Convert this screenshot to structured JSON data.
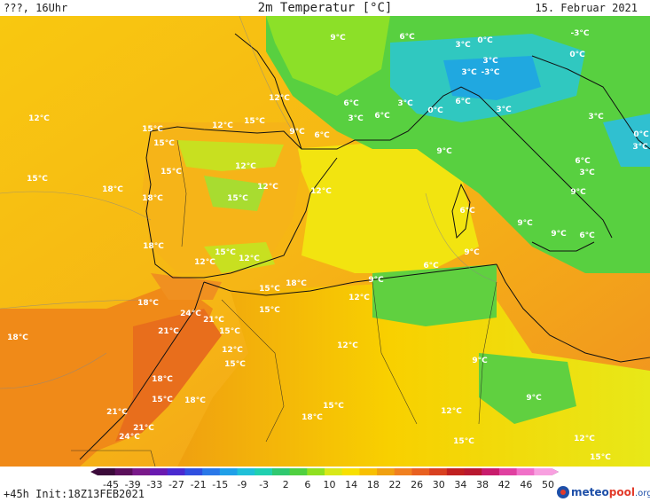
{
  "header": {
    "left": "???, 16Uhr",
    "title": "2m Temperatur [°C]",
    "date": "15. Februar 2021"
  },
  "footer": {
    "init": "+45h Init:18Z13FEB2021",
    "logo": {
      "part1": "meteo",
      "part2": "pool",
      "part3": ".org"
    }
  },
  "colorbar": {
    "labels": [
      "-45",
      "-39",
      "-33",
      "-27",
      "-21",
      "-15",
      "-9",
      "-3",
      "2",
      "6",
      "10",
      "14",
      "18",
      "22",
      "26",
      "30",
      "34",
      "38",
      "42",
      "46",
      "50"
    ],
    "colors": [
      "#3b0a3a",
      "#5b0f5b",
      "#7a1a8a",
      "#6a1ab0",
      "#4a2ad0",
      "#3050e0",
      "#2a78e8",
      "#20a0e8",
      "#20c0d8",
      "#20d0b0",
      "#30c870",
      "#50d040",
      "#90e020",
      "#d8e818",
      "#f8e000",
      "#f8c000",
      "#f0a010",
      "#f08020",
      "#e86020",
      "#d84020",
      "#c02020",
      "#b81830",
      "#c81c6c",
      "#e040a0",
      "#f070c8",
      "#f8a0e0"
    ]
  },
  "temperature_labels": [
    {
      "text": "9°C"
    },
    {
      "text": "6°C"
    },
    {
      "text": "3°C"
    },
    {
      "text": "0°C"
    },
    {
      "text": "-3°C"
    },
    {
      "text": "3°C"
    },
    {
      "text": "3°C"
    },
    {
      "text": "-3°C"
    },
    {
      "text": "0°C"
    },
    {
      "text": "12°C"
    },
    {
      "text": "6°C"
    },
    {
      "text": "3°C"
    },
    {
      "text": "6°C"
    },
    {
      "text": "3°C"
    },
    {
      "text": "0°C"
    },
    {
      "text": "6°C"
    },
    {
      "text": "3°C"
    },
    {
      "text": "3°C"
    },
    {
      "text": "0°C"
    },
    {
      "text": "3°C"
    },
    {
      "text": "12°C"
    },
    {
      "text": "15°C"
    },
    {
      "text": "12°C"
    },
    {
      "text": "15°C"
    },
    {
      "text": "9°C"
    },
    {
      "text": "6°C"
    },
    {
      "text": "15°C"
    },
    {
      "text": "12°C"
    },
    {
      "text": "15°C"
    },
    {
      "text": "15°C"
    },
    {
      "text": "12°C"
    },
    {
      "text": "18°C"
    },
    {
      "text": "15°C"
    },
    {
      "text": "12°C"
    },
    {
      "text": "9°C"
    },
    {
      "text": "6°C"
    },
    {
      "text": "3°C"
    },
    {
      "text": "9°C"
    },
    {
      "text": "6°C"
    },
    {
      "text": "9°C"
    },
    {
      "text": "9°C"
    },
    {
      "text": "6°C"
    },
    {
      "text": "18°C"
    },
    {
      "text": "18°C"
    },
    {
      "text": "15°C"
    },
    {
      "text": "12°C"
    },
    {
      "text": "12°C"
    },
    {
      "text": "6°C"
    },
    {
      "text": "9°C"
    },
    {
      "text": "15°C"
    },
    {
      "text": "18°C"
    },
    {
      "text": "9°C"
    },
    {
      "text": "12°C"
    },
    {
      "text": "15°C"
    },
    {
      "text": "18°C"
    },
    {
      "text": "24°C"
    },
    {
      "text": "21°C"
    },
    {
      "text": "21°C"
    },
    {
      "text": "15°C"
    },
    {
      "text": "18°C"
    },
    {
      "text": "12°C"
    },
    {
      "text": "15°C"
    },
    {
      "text": "12°C"
    },
    {
      "text": "9°C"
    },
    {
      "text": "18°C"
    },
    {
      "text": "15°C"
    },
    {
      "text": "18°C"
    },
    {
      "text": "9°C"
    },
    {
      "text": "21°C"
    },
    {
      "text": "21°C"
    },
    {
      "text": "24°C"
    },
    {
      "text": "15°C"
    },
    {
      "text": "18°C"
    },
    {
      "text": "12°C"
    },
    {
      "text": "15°C"
    },
    {
      "text": "12°C"
    },
    {
      "text": "15°C"
    }
  ]
}
